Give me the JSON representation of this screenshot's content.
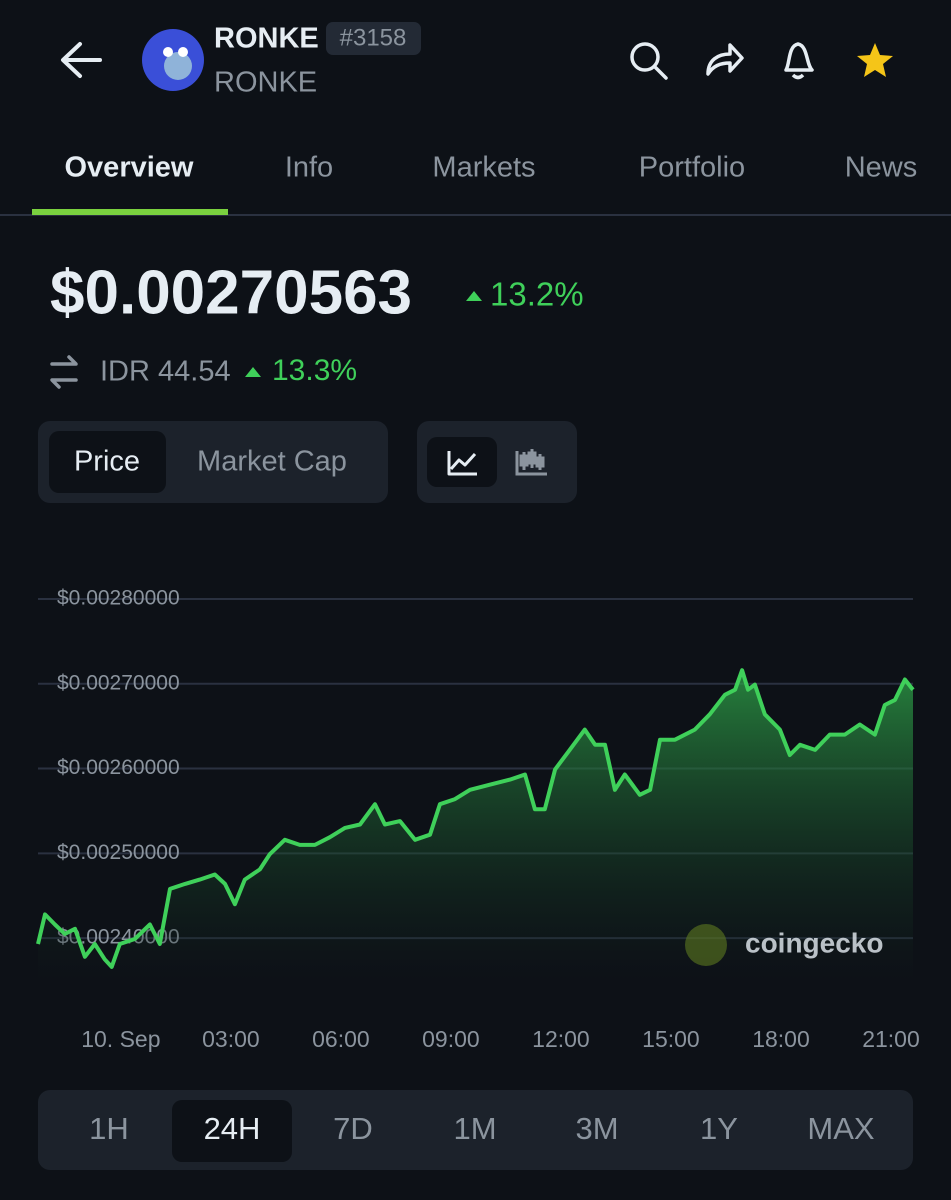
{
  "header": {
    "name": "RONKE",
    "rank": "#3158",
    "symbol": "RONKE"
  },
  "tabs": [
    "Overview",
    "Info",
    "Markets",
    "Portfolio",
    "News"
  ],
  "price": {
    "usd": "$0.00270563",
    "usd_change": "13.2%",
    "idr": "IDR 44.54",
    "idr_change": "13.3%"
  },
  "toggle": [
    "Price",
    "Market Cap"
  ],
  "watermark": "coingecko",
  "ranges": [
    "1H",
    "24H",
    "7D",
    "1M",
    "3M",
    "1Y",
    "MAX"
  ],
  "chart_data": {
    "type": "line",
    "color": "#3fd05a",
    "x": [
      -2.26,
      -2.07,
      -1.8,
      -1.53,
      -1.25,
      -0.98,
      -0.71,
      -0.44,
      -0.25,
      -0.03,
      0.38,
      0.79,
      1.06,
      1.34,
      1.75,
      2.15,
      2.56,
      2.84,
      3.11,
      3.38,
      3.79,
      4.06,
      4.47,
      4.88,
      5.29,
      5.7,
      6.11,
      6.52,
      6.93,
      7.2,
      7.61,
      8.02,
      8.43,
      8.7,
      9.11,
      9.52,
      10.06,
      10.61,
      11.02,
      11.29,
      11.56,
      11.84,
      12.24,
      12.65,
      12.93,
      13.2,
      13.47,
      13.74,
      14.15,
      14.43,
      14.7,
      15.11,
      15.65,
      16.06,
      16.47,
      16.75,
      16.94,
      17.1,
      17.29,
      17.56,
      17.97,
      18.24,
      18.52,
      18.93,
      19.33,
      19.74,
      20.15,
      20.56,
      20.83,
      21.11,
      21.38,
      21.6
    ],
    "values": [
      0.002393,
      0.002428,
      0.002416,
      0.002405,
      0.002411,
      0.002378,
      0.002393,
      0.002375,
      0.002366,
      0.002393,
      0.002399,
      0.002416,
      0.002393,
      0.002458,
      0.002464,
      0.002469,
      0.002475,
      0.002464,
      0.00244,
      0.002469,
      0.002481,
      0.002499,
      0.002516,
      0.00251,
      0.00251,
      0.002519,
      0.00253,
      0.002534,
      0.002558,
      0.002534,
      0.002538,
      0.002516,
      0.002522,
      0.002558,
      0.002564,
      0.002575,
      0.002581,
      0.002587,
      0.002593,
      0.002552,
      0.002552,
      0.002599,
      0.002622,
      0.002646,
      0.002628,
      0.002628,
      0.002575,
      0.002593,
      0.002569,
      0.002575,
      0.002634,
      0.002634,
      0.002646,
      0.002664,
      0.002687,
      0.002693,
      0.002716,
      0.002693,
      0.002699,
      0.002664,
      0.002646,
      0.002616,
      0.002628,
      0.002622,
      0.00264,
      0.00264,
      0.002652,
      0.00264,
      0.002675,
      0.002681,
      0.002705,
      0.002693
    ],
    "xlim": [
      -2.26,
      21.6
    ],
    "xticks": [
      {
        "value": 0,
        "label": "10. Sep"
      },
      {
        "value": 3,
        "label": "03:00"
      },
      {
        "value": 6,
        "label": "06:00"
      },
      {
        "value": 9,
        "label": "09:00"
      },
      {
        "value": 12,
        "label": "12:00"
      },
      {
        "value": 15,
        "label": "15:00"
      },
      {
        "value": 18,
        "label": "18:00"
      },
      {
        "value": 21,
        "label": "21:00"
      }
    ],
    "ylim": [
      0.00235,
      0.0028
    ],
    "yticks": [
      {
        "value": 0.0028,
        "label": "$0.00280000"
      },
      {
        "value": 0.0027,
        "label": "$0.00270000"
      },
      {
        "value": 0.0026,
        "label": "$0.00260000"
      },
      {
        "value": 0.0025,
        "label": "$0.00250000"
      },
      {
        "value": 0.0024,
        "label": "$0.00240000"
      }
    ],
    "grid": true
  }
}
